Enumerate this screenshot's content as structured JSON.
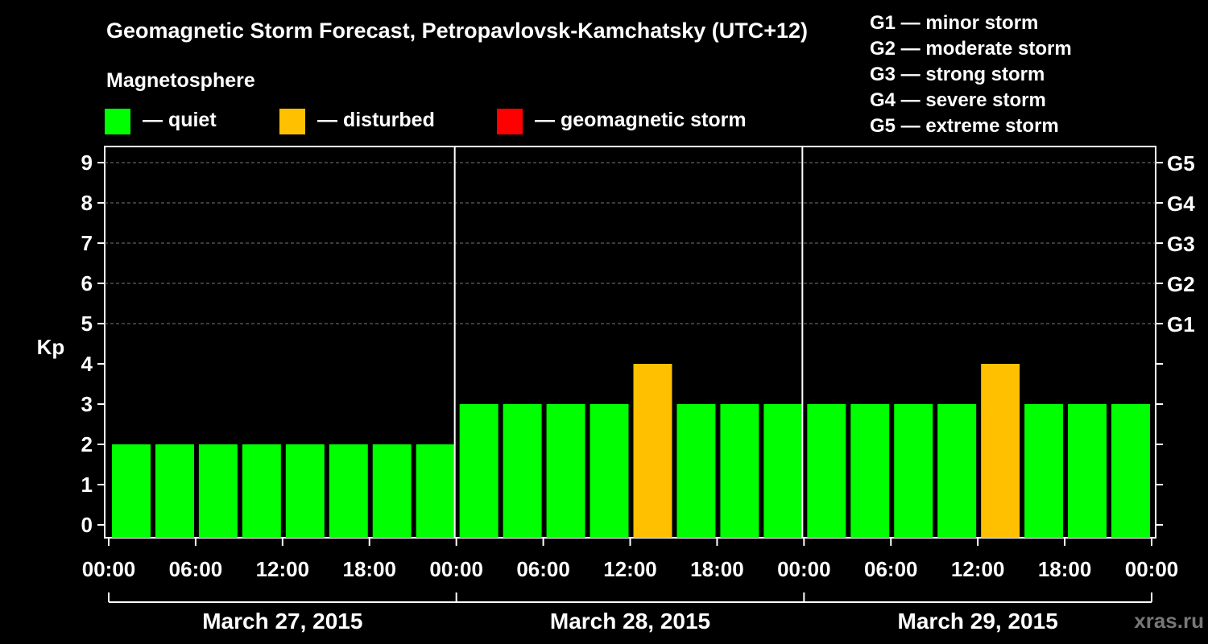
{
  "title": "Geomagnetic Storm Forecast, Petropavlovsk-Kamchatsky (UTC+12)",
  "legend": {
    "heading": "Magnetosphere",
    "items": [
      {
        "label": "— quiet",
        "color": "#00ff00"
      },
      {
        "label": "— disturbed",
        "color": "#ffc000"
      },
      {
        "label": "— geomagnetic storm",
        "color": "#ff0000"
      }
    ]
  },
  "storm_scale": [
    "G1 — minor storm",
    "G2 — moderate storm",
    "G3 — strong storm",
    "G4 — severe storm",
    "G5 — extreme storm"
  ],
  "watermark": "xras.ru",
  "colors": {
    "quiet": "#00ff00",
    "disturbed": "#ffc000",
    "storm": "#ff0000",
    "background": "#000000",
    "axis": "#ffffff"
  },
  "chart_data": {
    "type": "bar",
    "title": "Geomagnetic Storm Forecast, Petropavlovsk-Kamchatsky (UTC+12)",
    "ylabel": "Kp",
    "ylim": [
      0,
      9
    ],
    "yticks": [
      "0",
      "1",
      "2",
      "3",
      "4",
      "5",
      "6",
      "7",
      "8",
      "9"
    ],
    "right_ticks": [
      {
        "kp": 5,
        "label": "G1"
      },
      {
        "kp": 6,
        "label": "G2"
      },
      {
        "kp": 7,
        "label": "G3"
      },
      {
        "kp": 8,
        "label": "G4"
      },
      {
        "kp": 9,
        "label": "G5"
      }
    ],
    "xtick_labels": [
      "00:00",
      "06:00",
      "12:00",
      "18:00",
      "00:00",
      "06:00",
      "12:00",
      "18:00",
      "00:00",
      "06:00",
      "12:00",
      "18:00",
      "00:00"
    ],
    "days": [
      "March 27, 2015",
      "March 28, 2015",
      "March 29, 2015"
    ],
    "interval_hours": 3,
    "values": [
      2,
      2,
      2,
      2,
      2,
      2,
      2,
      2,
      3,
      3,
      3,
      3,
      4,
      3,
      3,
      3,
      3,
      3,
      3,
      3,
      4,
      3,
      3,
      3
    ],
    "categories": [
      "quiet",
      "quiet",
      "quiet",
      "quiet",
      "quiet",
      "quiet",
      "quiet",
      "quiet",
      "quiet",
      "quiet",
      "quiet",
      "quiet",
      "disturbed",
      "quiet",
      "quiet",
      "quiet",
      "quiet",
      "quiet",
      "quiet",
      "quiet",
      "disturbed",
      "quiet",
      "quiet",
      "quiet"
    ],
    "grid": true
  }
}
